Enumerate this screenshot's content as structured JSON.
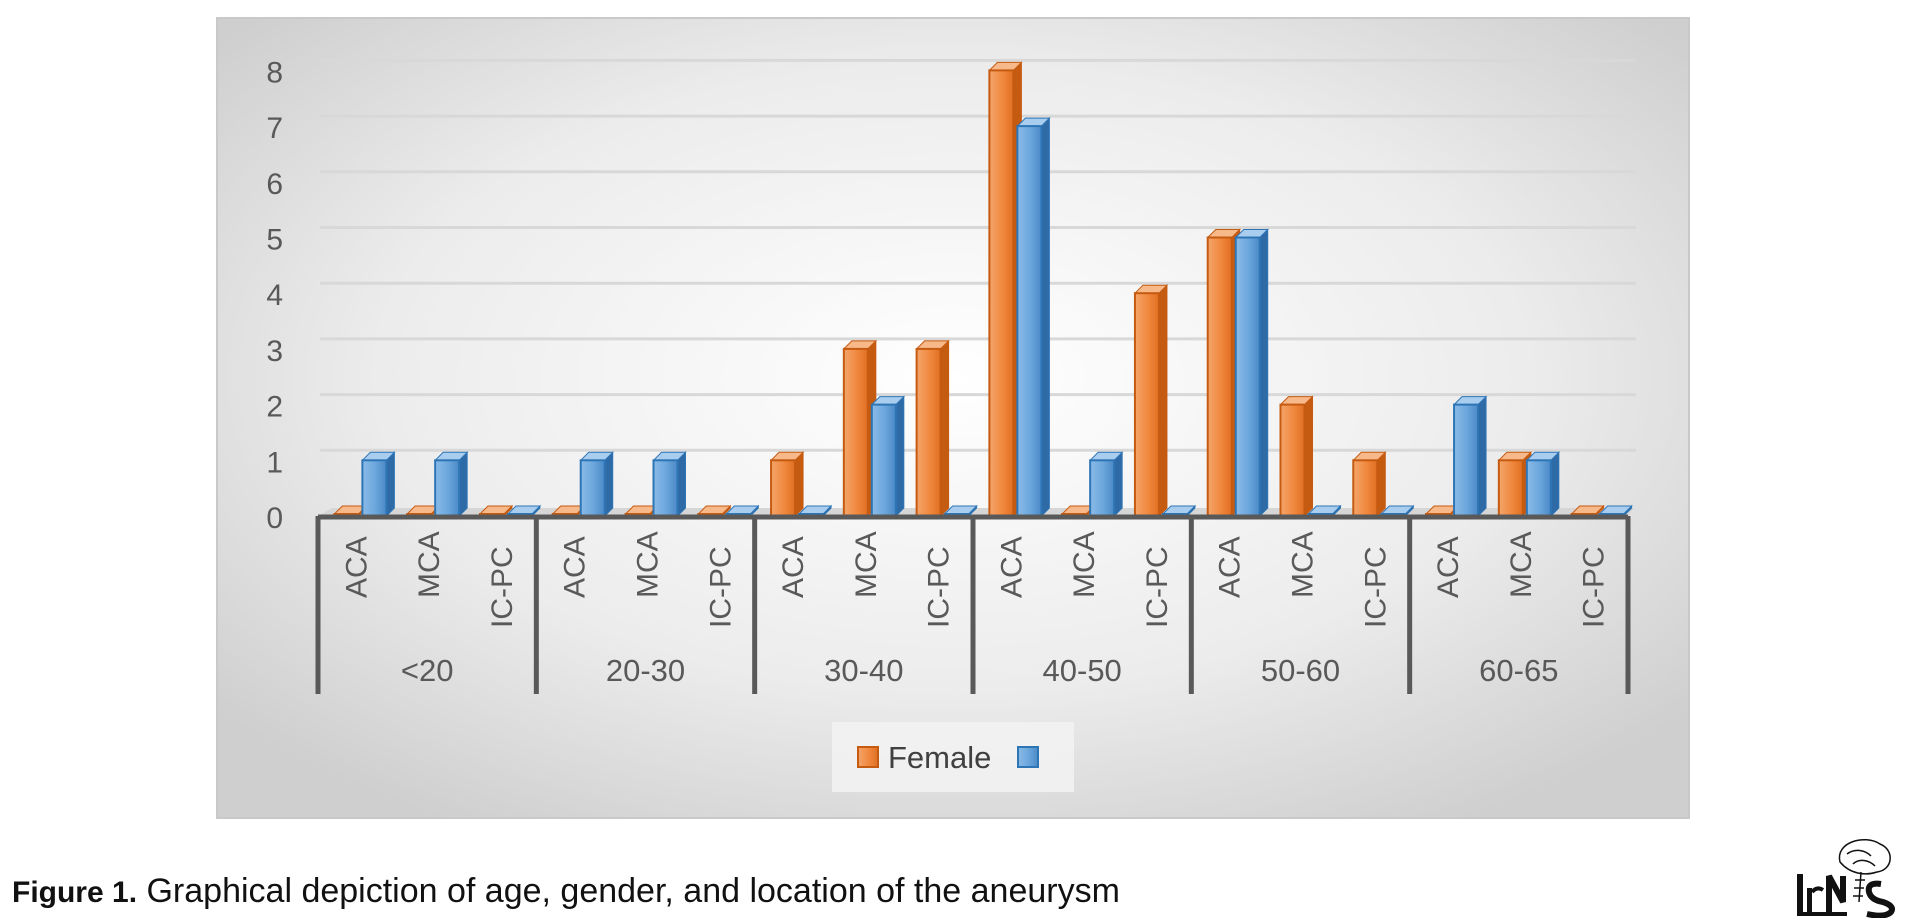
{
  "chart_data": {
    "type": "bar",
    "groups": [
      {
        "label": "<20",
        "categories": [
          "ACA",
          "MCA",
          "IC-PC"
        ]
      },
      {
        "label": "20-30",
        "categories": [
          "ACA",
          "MCA",
          "IC-PC"
        ]
      },
      {
        "label": "30-40",
        "categories": [
          "ACA",
          "MCA",
          "IC-PC"
        ]
      },
      {
        "label": "40-50",
        "categories": [
          "ACA",
          "MCA",
          "IC-PC"
        ]
      },
      {
        "label": "50-60",
        "categories": [
          "ACA",
          "MCA",
          "IC-PC"
        ]
      },
      {
        "label": "60-65",
        "categories": [
          "ACA",
          "MCA",
          "IC-PC"
        ]
      }
    ],
    "series": [
      {
        "name": "Female",
        "color": "#ED7D31",
        "values": [
          0,
          0,
          0,
          0,
          0,
          0,
          1,
          3,
          3,
          8,
          0,
          4,
          5,
          2,
          1,
          0,
          1,
          0
        ]
      },
      {
        "name": "",
        "color": "#5B9BD5",
        "values": [
          1,
          1,
          0,
          1,
          1,
          0,
          0,
          2,
          0,
          7,
          1,
          0,
          5,
          0,
          0,
          2,
          1,
          0
        ]
      }
    ],
    "ylim": [
      0,
      8
    ],
    "yticks": [
      0,
      1,
      2,
      3,
      4,
      5,
      6,
      7,
      8
    ],
    "grid": true,
    "legend_position": "bottom",
    "title": "",
    "xlabel": "",
    "ylabel": ""
  },
  "caption": {
    "label": "Figure 1.",
    "text": "Graphical depiction of age, gender, and location of the aneurysm"
  },
  "logo_text": "IrNS"
}
